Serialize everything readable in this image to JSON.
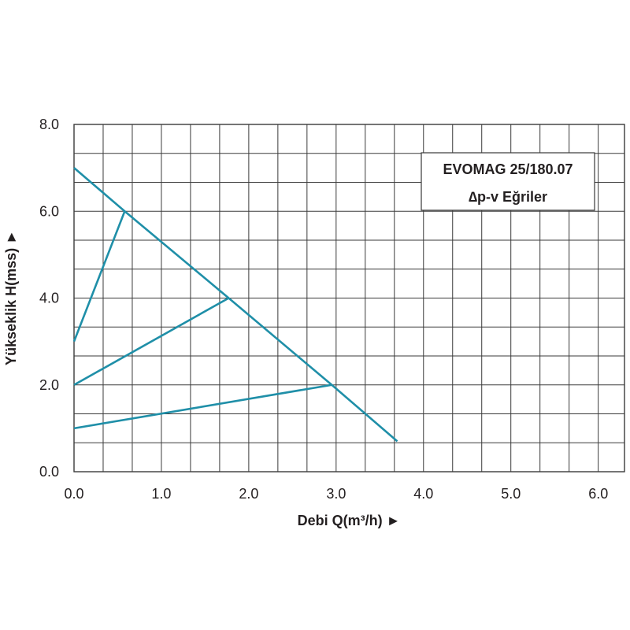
{
  "colors": {
    "curve": "#1f8fa8",
    "grid": "#3a3a3a",
    "text": "#231f20"
  },
  "chart_data": {
    "type": "line",
    "title": "",
    "xlabel": "Debi Q(m³/h) ►",
    "ylabel": "Yükseklik H(mss) ►",
    "xlim": [
      0,
      6.3
    ],
    "ylim": [
      0,
      8
    ],
    "x_ticks": [
      0,
      1,
      2,
      3,
      4,
      5,
      6
    ],
    "x_tick_labels": [
      "0.0",
      "1.0",
      "2.0",
      "3.0",
      "4.0",
      "5.0",
      "6.0"
    ],
    "y_ticks": [
      0,
      2,
      4,
      6,
      8
    ],
    "y_tick_labels": [
      "0.0",
      "2.0",
      "4.0",
      "6.0",
      "8.0"
    ],
    "x_grid_step": 0.3333,
    "y_grid_step": 0.6667,
    "grid": true,
    "legend_box": {
      "line1": "EVOMAG 25/180.07",
      "line2": "∆p-v Eğriler",
      "position": "top-right"
    },
    "series": [
      {
        "points": [
          [
            0,
            7.0
          ],
          [
            0.58,
            6.0
          ],
          [
            1.77,
            4.0
          ],
          [
            2.95,
            2.0
          ],
          [
            3.7,
            0.7
          ]
        ]
      },
      {
        "points": [
          [
            0,
            3.0
          ],
          [
            0.58,
            6.0
          ]
        ]
      },
      {
        "points": [
          [
            0,
            2.0
          ],
          [
            1.77,
            4.0
          ]
        ]
      },
      {
        "points": [
          [
            0,
            1.0
          ],
          [
            2.95,
            2.0
          ]
        ]
      }
    ]
  }
}
